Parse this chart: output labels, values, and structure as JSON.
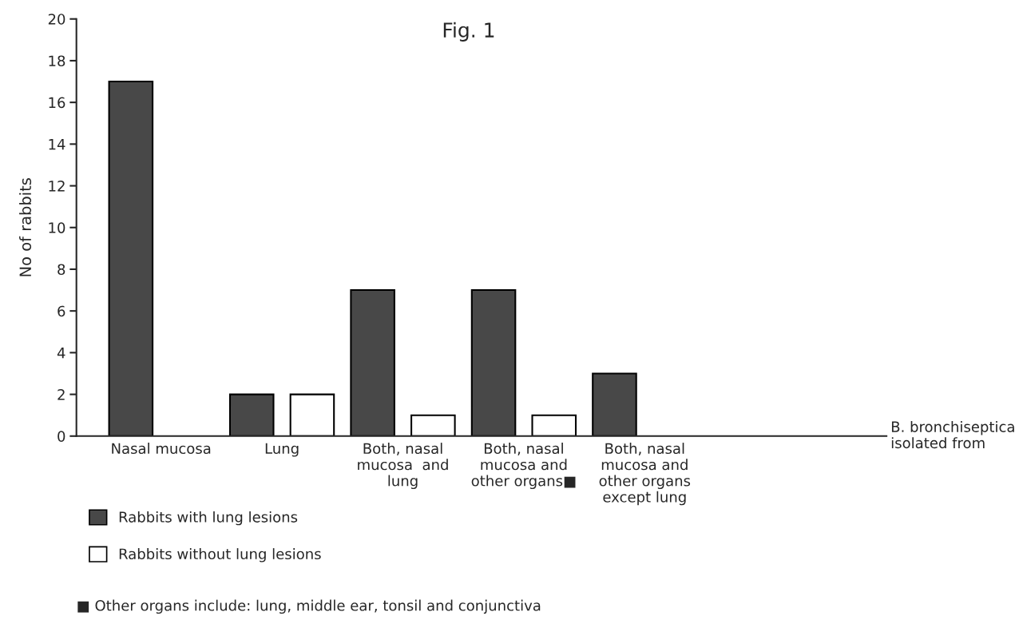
{
  "chart_data": {
    "type": "bar",
    "title": "Fig. 1",
    "ylabel": "No of rabbits",
    "categories": [
      "Nasal mucosa",
      "Lung",
      "Both, nasal\nmucosa  and\nlung",
      "Both, nasal\nmucosa and\nother organs■",
      "Both, nasal\nmucosa and\nother organs\nexcept lung"
    ],
    "series": [
      {
        "name": "Rabbits with lung lesions",
        "color": "#484848",
        "values": [
          17,
          2,
          7,
          7,
          3
        ]
      },
      {
        "name": "Rabbits without lung lesions",
        "color": "#ffffff",
        "values": [
          0,
          2,
          1,
          1,
          0
        ]
      }
    ],
    "ylim": [
      0,
      20
    ],
    "yticks": [
      0,
      2,
      4,
      6,
      8,
      10,
      12,
      14,
      16,
      18,
      20
    ],
    "grid": false,
    "legend": "bottom left",
    "annotations": [
      "B. bronchiseptica\nisolated from",
      "■ Other organs include: lung, middle ear, tonsil and conjunctiva"
    ]
  }
}
